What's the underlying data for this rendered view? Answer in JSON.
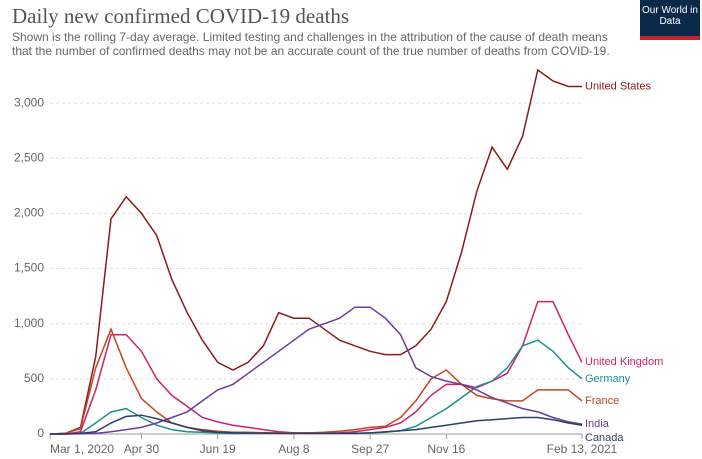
{
  "logo": "Our World in Data",
  "chart_data": {
    "type": "line",
    "title": "Daily new confirmed COVID-19 deaths",
    "subtitle": "Shown is the rolling 7-day average. Limited testing and challenges in the attribution of the cause of death means that the number of confirmed deaths may not be an accurate count of the true number of deaths from COVID-19.",
    "x": [
      "2020-03-01",
      "2020-03-11",
      "2020-03-21",
      "2020-03-31",
      "2020-04-10",
      "2020-04-20",
      "2020-04-30",
      "2020-05-10",
      "2020-05-20",
      "2020-05-30",
      "2020-06-09",
      "2020-06-19",
      "2020-06-29",
      "2020-07-09",
      "2020-07-19",
      "2020-07-29",
      "2020-08-08",
      "2020-08-18",
      "2020-08-28",
      "2020-09-07",
      "2020-09-17",
      "2020-09-27",
      "2020-10-07",
      "2020-10-17",
      "2020-10-27",
      "2020-11-06",
      "2020-11-16",
      "2020-11-26",
      "2020-12-06",
      "2020-12-16",
      "2020-12-26",
      "2021-01-05",
      "2021-01-15",
      "2021-01-25",
      "2021-02-04",
      "2021-02-13"
    ],
    "xlim": [
      "2020-03-01",
      "2021-02-13"
    ],
    "xticks": [
      {
        "value": "2020-03-01",
        "label": "Mar 1, 2020"
      },
      {
        "value": "2020-04-30",
        "label": "Apr 30"
      },
      {
        "value": "2020-06-19",
        "label": "Jun 19"
      },
      {
        "value": "2020-08-08",
        "label": "Aug 8"
      },
      {
        "value": "2020-09-27",
        "label": "Sep 27"
      },
      {
        "value": "2020-11-16",
        "label": "Nov 16"
      },
      {
        "value": "2021-02-13",
        "label": "Feb 13, 2021"
      }
    ],
    "ylim": [
      0,
      3300
    ],
    "yticks": [
      0,
      500,
      {
        "value": 1000,
        "label": "1,000"
      },
      {
        "value": 1500,
        "label": "1,500"
      },
      {
        "value": 2000,
        "label": "2,000"
      },
      {
        "value": 2500,
        "label": "2,500"
      },
      {
        "value": 3000,
        "label": "3,000"
      }
    ],
    "grid": true,
    "series": [
      {
        "name": "United States",
        "color": "#8b1a1a",
        "values": [
          0,
          5,
          60,
          700,
          1950,
          2150,
          2000,
          1800,
          1400,
          1100,
          850,
          650,
          580,
          650,
          800,
          1100,
          1050,
          1050,
          950,
          850,
          800,
          750,
          720,
          720,
          800,
          950,
          1200,
          1650,
          2200,
          2600,
          2400,
          2700,
          3300,
          3200,
          3150,
          3150
        ]
      },
      {
        "name": "United Kingdom",
        "color": "#d0226a",
        "values": [
          0,
          0,
          20,
          400,
          900,
          900,
          750,
          500,
          350,
          250,
          150,
          110,
          80,
          60,
          40,
          20,
          10,
          10,
          10,
          10,
          20,
          40,
          60,
          100,
          200,
          350,
          450,
          450,
          420,
          480,
          550,
          800,
          1200,
          1200,
          900,
          650
        ]
      },
      {
        "name": "Germany",
        "color": "#1d8f8f",
        "values": [
          0,
          0,
          5,
          100,
          200,
          230,
          150,
          80,
          40,
          20,
          15,
          10,
          5,
          5,
          5,
          5,
          5,
          5,
          5,
          5,
          5,
          10,
          15,
          30,
          70,
          150,
          230,
          330,
          430,
          480,
          600,
          800,
          850,
          750,
          600,
          500
        ]
      },
      {
        "name": "France",
        "color": "#c4461c",
        "values": [
          0,
          5,
          50,
          600,
          950,
          600,
          320,
          200,
          100,
          60,
          40,
          25,
          15,
          15,
          12,
          10,
          10,
          10,
          15,
          25,
          40,
          60,
          70,
          150,
          300,
          500,
          580,
          450,
          350,
          320,
          300,
          300,
          400,
          400,
          400,
          300
        ]
      },
      {
        "name": "India",
        "color": "#6a3d9a",
        "values": [
          0,
          0,
          2,
          5,
          20,
          40,
          60,
          100,
          150,
          200,
          300,
          400,
          450,
          550,
          650,
          750,
          850,
          950,
          1000,
          1050,
          1150,
          1150,
          1050,
          900,
          600,
          520,
          480,
          450,
          400,
          330,
          280,
          230,
          200,
          150,
          110,
          90
        ]
      },
      {
        "name": "Canada",
        "color": "#2c3e6b",
        "values": [
          0,
          0,
          5,
          20,
          100,
          160,
          170,
          140,
          100,
          60,
          30,
          15,
          10,
          8,
          8,
          5,
          5,
          5,
          5,
          5,
          5,
          10,
          20,
          30,
          40,
          60,
          80,
          100,
          120,
          130,
          140,
          150,
          150,
          130,
          100,
          80
        ]
      }
    ]
  }
}
